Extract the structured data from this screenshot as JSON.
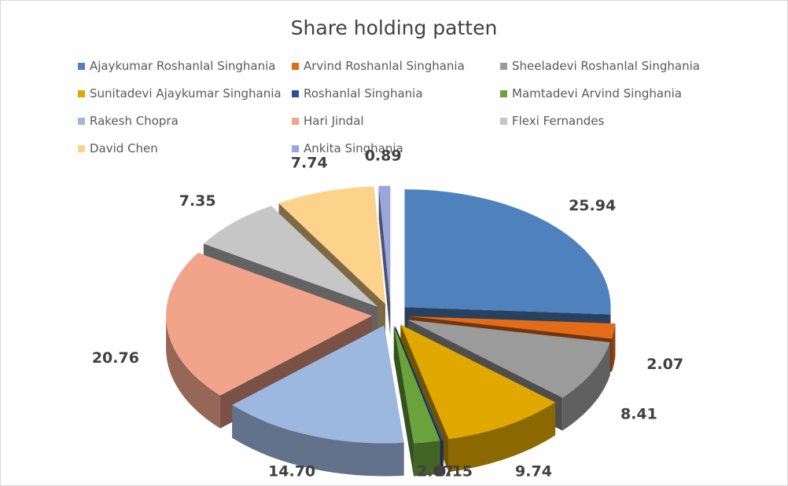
{
  "chart_data": {
    "type": "pie",
    "title": "Share holding patten",
    "legend_position": "top",
    "slices": [
      {
        "name": "Ajaykumar Roshanlal Singhania",
        "value": 25.94,
        "label": "25.94",
        "color": "#4f81bd"
      },
      {
        "name": "Arvind Roshanlal Singhania",
        "value": 2.07,
        "label": "2.07",
        "color": "#e46c19"
      },
      {
        "name": "Sheeladevi Roshanlal Singhania",
        "value": 8.41,
        "label": "8.41",
        "color": "#9b9b9b"
      },
      {
        "name": "Sunitadevi Ajaykumar Singhania",
        "value": 9.74,
        "label": "9.74",
        "color": "#e0a800"
      },
      {
        "name": "Roshanlal Singhania",
        "value": 0.15,
        "label": "0.15",
        "color": "#2e4f8f"
      },
      {
        "name": "Mamtadevi Arvind Singhania",
        "value": 2.07,
        "label": "2.07",
        "color": "#6aa33c"
      },
      {
        "name": "Rakesh Chopra",
        "value": 14.7,
        "label": "14.70",
        "color": "#9cb8df"
      },
      {
        "name": "Hari Jindal",
        "value": 20.76,
        "label": "20.76",
        "color": "#f2a48a"
      },
      {
        "name": "Flexi Fernandes",
        "value": 7.35,
        "label": "7.35",
        "color": "#c6c6c6"
      },
      {
        "name": "David Chen",
        "value": 7.74,
        "label": "7.74",
        "color": "#fdd28a"
      },
      {
        "name": "Ankita Singhania",
        "value": 0.89,
        "label": "0.89",
        "color": "#9aa6dc"
      }
    ]
  }
}
